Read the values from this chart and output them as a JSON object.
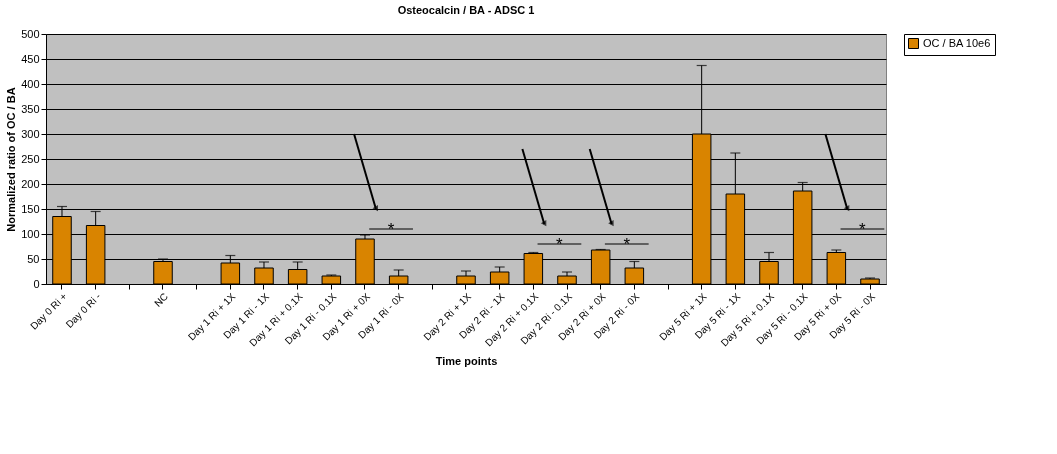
{
  "chart_data": {
    "type": "bar",
    "title": "Osteocalcin / BA - ADSC 1",
    "xlabel": "Time points",
    "ylabel": "Normalized ratio of OC / BA",
    "categories": [
      "Day 0 Ri +",
      "Day 0 Ri -",
      null,
      "NC",
      null,
      "Day 1 Ri + 1X",
      "Day 1 Ri - 1X",
      "Day 1 Ri + 0.1X",
      "Day 1 Ri - 0.1X",
      "Day 1 Ri + 0X",
      "Day 1 Ri - 0X",
      null,
      "Day 2 Ri + 1X",
      "Day 2 Ri - 1X",
      "Day 2 Ri + 0.1X",
      "Day 2 Ri - 0.1X",
      "Day 2 Ri + 0X",
      "Day 2 Ri - 0X",
      null,
      "Day 5 Ri + 1X",
      "Day 5 Ri - 1X",
      "Day 5 Ri + 0.1X",
      "Day 5 Ri - 0.1X",
      "Day 5 Ri + 0X",
      "Day 5 Ri - 0X"
    ],
    "series": [
      {
        "name": "OC / BA 10e6",
        "color": "#d98400",
        "values": [
          135,
          117,
          null,
          45,
          null,
          42,
          32,
          29,
          16,
          90,
          16,
          null,
          16,
          24,
          61,
          16,
          68,
          32,
          null,
          300,
          180,
          45,
          186,
          63,
          10
        ],
        "errors": [
          [
            135,
            155
          ],
          [
            117,
            145
          ],
          null,
          [
            45,
            50
          ],
          null,
          [
            42,
            57
          ],
          [
            32,
            44
          ],
          [
            29,
            44
          ],
          [
            16,
            18
          ],
          [
            90,
            98
          ],
          [
            16,
            28
          ],
          null,
          [
            16,
            26
          ],
          [
            24,
            34
          ],
          [
            61,
            63
          ],
          [
            16,
            24
          ],
          [
            68,
            69
          ],
          [
            32,
            45
          ],
          null,
          [
            300,
            437
          ],
          [
            180,
            262
          ],
          [
            45,
            63
          ],
          [
            186,
            203
          ],
          [
            63,
            68
          ],
          [
            10,
            12
          ]
        ]
      }
    ],
    "ylim": [
      0,
      500
    ],
    "yticks": [
      0,
      50,
      100,
      150,
      200,
      250,
      300,
      350,
      400,
      450,
      500
    ],
    "grid": "y",
    "legend": "right",
    "annotations": [
      "*",
      "*",
      "*",
      "*"
    ]
  }
}
